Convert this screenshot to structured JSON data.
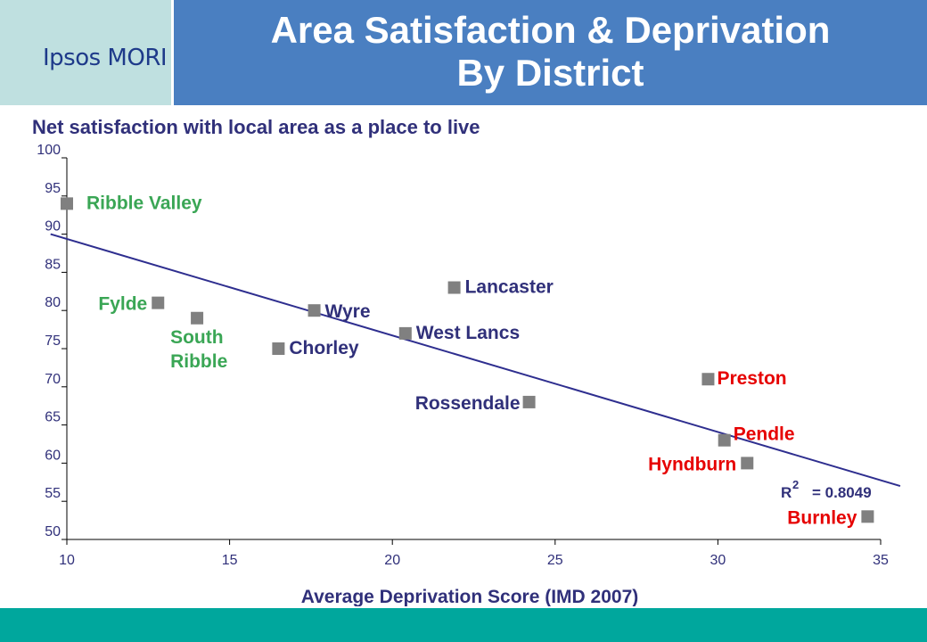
{
  "header": {
    "logo": "Ipsos MORI",
    "title_line1": "Area Satisfaction & Deprivation",
    "title_line2": "By District"
  },
  "colors": {
    "title_bar": "#4a7fc1",
    "logo_bg": "#bfe0e0",
    "footer": "#00a79d",
    "text_navy": "#30307a",
    "green": "#3aa655",
    "red": "#e60000",
    "marker": "#808080",
    "trendline": "#2e2e8f"
  },
  "chart_data": {
    "type": "scatter",
    "title": "Net satisfaction with local area as a place to live",
    "xlabel": "Average Deprivation Score (IMD 2007)",
    "ylabel": "",
    "xlim": [
      10,
      35
    ],
    "ylim": [
      50,
      100
    ],
    "xticks": [
      10,
      15,
      20,
      25,
      30,
      35
    ],
    "yticks": [
      50,
      55,
      60,
      65,
      70,
      75,
      80,
      85,
      90,
      95,
      100
    ],
    "grid": false,
    "points": [
      {
        "label": "Ribble Valley",
        "x": 10.0,
        "y": 94,
        "color": "green"
      },
      {
        "label": "Fylde",
        "x": 12.8,
        "y": 81,
        "color": "green"
      },
      {
        "label": "South Ribble",
        "x": 14.0,
        "y": 79,
        "color": "green"
      },
      {
        "label": "Chorley",
        "x": 16.5,
        "y": 75,
        "color": "navy"
      },
      {
        "label": "Wyre",
        "x": 17.6,
        "y": 80,
        "color": "navy"
      },
      {
        "label": "West Lancs",
        "x": 20.4,
        "y": 77,
        "color": "navy"
      },
      {
        "label": "Lancaster",
        "x": 21.9,
        "y": 83,
        "color": "navy"
      },
      {
        "label": "Rossendale",
        "x": 24.2,
        "y": 68,
        "color": "navy"
      },
      {
        "label": "Preston",
        "x": 29.7,
        "y": 71,
        "color": "red"
      },
      {
        "label": "Pendle",
        "x": 30.2,
        "y": 63,
        "color": "red"
      },
      {
        "label": "Hyndburn",
        "x": 30.9,
        "y": 60,
        "color": "red"
      },
      {
        "label": "Burnley",
        "x": 34.6,
        "y": 53,
        "color": "red"
      }
    ],
    "trendline": {
      "x": [
        9.5,
        35.6
      ],
      "y": [
        90,
        57
      ]
    },
    "r_squared_label": "R",
    "r_squared_exp": "2",
    "r_squared_value": "= 0.8049"
  }
}
